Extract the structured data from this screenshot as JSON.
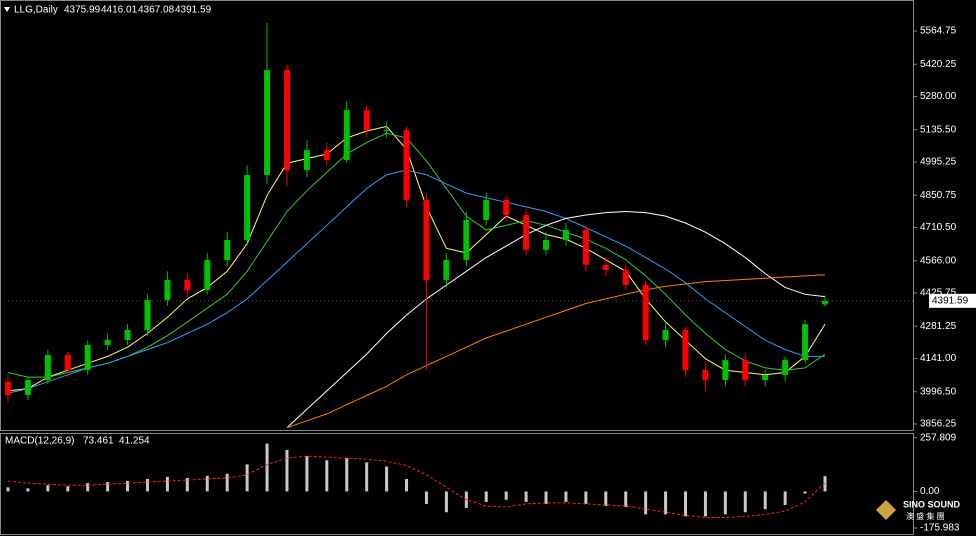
{
  "chart_data": [
    {
      "type": "candlestick",
      "title": "LLG,Daily",
      "open": [
        4040,
        3982,
        4047,
        4156,
        4091,
        4200,
        4221,
        4265,
        4395,
        4482,
        4439,
        4569,
        4656,
        4939,
        5395,
        4960,
        5047,
        5004,
        5221,
        5134,
        5134,
        4830,
        4482,
        4569,
        4743,
        4830,
        4765,
        4613,
        4656,
        4700,
        4548,
        4526,
        4461,
        4221,
        4265,
        4091,
        4047,
        4134,
        4047,
        4069,
        4134,
        4375.99
      ],
      "high": [
        4070,
        4060,
        4180,
        4170,
        4220,
        4250,
        4290,
        4420,
        4520,
        4510,
        4600,
        4690,
        4980,
        5600,
        5420,
        5090,
        5080,
        5260,
        5240,
        5170,
        5150,
        4860,
        4600,
        4780,
        4860,
        4850,
        4790,
        4690,
        4730,
        4720,
        4580,
        4550,
        4480,
        4300,
        4280,
        4120,
        4160,
        4160,
        4090,
        4150,
        4310,
        4416.01
      ],
      "low": [
        3950,
        3960,
        4030,
        4060,
        4070,
        4180,
        4200,
        4240,
        4370,
        4410,
        4420,
        4540,
        4630,
        4900,
        4890,
        4930,
        4980,
        4990,
        5100,
        5100,
        4800,
        4091,
        4450,
        4540,
        4720,
        4740,
        4590,
        4590,
        4630,
        4520,
        4500,
        4440,
        4200,
        4190,
        4060,
        4000,
        4020,
        4020,
        4020,
        4040,
        4120,
        4367.08
      ],
      "close": [
        3982,
        4047,
        4156,
        4091,
        4200,
        4221,
        4265,
        4395,
        4482,
        4439,
        4569,
        4656,
        4939,
        5395,
        4960,
        5047,
        5004,
        5221,
        5134,
        5134,
        4830,
        4482,
        4569,
        4743,
        4830,
        4765,
        4613,
        4656,
        4700,
        4548,
        4526,
        4461,
        4221,
        4265,
        4091,
        4047,
        4134,
        4047,
        4069,
        4134,
        4290,
        4391.59
      ],
      "up_color": "#00c000",
      "down_color": "#ff0000",
      "lines": [
        {
          "color": "#ffff66",
          "values": [
            4000,
            4010,
            4060,
            4090,
            4120,
            4150,
            4190,
            4250,
            4320,
            4400,
            4450,
            4520,
            4640,
            4850,
            4990,
            5010,
            5030,
            5100,
            5130,
            5150,
            5050,
            4800,
            4620,
            4600,
            4680,
            4760,
            4720,
            4680,
            4660,
            4620,
            4570,
            4520,
            4400,
            4300,
            4220,
            4140,
            4090,
            4080,
            4070,
            4080,
            4150,
            4290
          ]
        },
        {
          "color": "#33cc33",
          "values": [
            4080,
            4060,
            4060,
            4080,
            4100,
            4120,
            4150,
            4190,
            4240,
            4300,
            4360,
            4420,
            4520,
            4650,
            4780,
            4870,
            4950,
            5030,
            5080,
            5120,
            5100,
            5000,
            4880,
            4760,
            4700,
            4720,
            4740,
            4720,
            4690,
            4660,
            4620,
            4570,
            4500,
            4420,
            4330,
            4250,
            4180,
            4130,
            4100,
            4090,
            4100,
            4160
          ]
        },
        {
          "color": "#3399ff",
          "values": [
            3990,
            4010,
            4040,
            4070,
            4100,
            4120,
            4150,
            4180,
            4210,
            4250,
            4290,
            4340,
            4400,
            4480,
            4560,
            4640,
            4720,
            4800,
            4880,
            4940,
            4960,
            4940,
            4900,
            4860,
            4840,
            4820,
            4800,
            4780,
            4750,
            4710,
            4670,
            4630,
            4580,
            4530,
            4470,
            4400,
            4340,
            4280,
            4220,
            4180,
            4150,
            4150
          ]
        },
        {
          "color": "#ffffff",
          "values": [
            null,
            null,
            null,
            null,
            null,
            null,
            null,
            null,
            null,
            null,
            null,
            null,
            null,
            null,
            3840,
            3920,
            4000,
            4080,
            4160,
            4250,
            4330,
            4400,
            4460,
            4520,
            4580,
            4630,
            4680,
            4720,
            4750,
            4765,
            4775,
            4780,
            4775,
            4760,
            4730,
            4690,
            4640,
            4580,
            4510,
            4450,
            4420,
            4410
          ]
        },
        {
          "color": "#ff8000",
          "values": [
            null,
            null,
            null,
            null,
            null,
            null,
            null,
            null,
            null,
            null,
            null,
            null,
            null,
            null,
            3840,
            3870,
            3900,
            3940,
            3980,
            4020,
            4070,
            4110,
            4150,
            4190,
            4230,
            4260,
            4290,
            4320,
            4350,
            4380,
            4400,
            4420,
            4440,
            4455,
            4465,
            4475,
            4480,
            4485,
            4490,
            4495,
            4500,
            4505
          ]
        }
      ],
      "ylim": [
        3830,
        5691
      ],
      "yticks": [
        5564.75,
        5420.25,
        {
          "value": 5280,
          "label": "5280.00"
        },
        {
          "value": 5135.5,
          "label": "5135.50"
        },
        4995.25,
        4850.75,
        {
          "value": 4710.5,
          "label": "4710.50"
        },
        {
          "value": 4566,
          "label": "4566.00"
        },
        4425.75,
        4281.25,
        {
          "value": 4141,
          "label": "4141.00"
        },
        {
          "value": 3996.5,
          "label": "3996.50"
        },
        3856.25
      ]
    },
    {
      "type": "macd",
      "title": "MACD(12,26,9)",
      "histogram": [
        20,
        15,
        30,
        25,
        40,
        45,
        50,
        60,
        70,
        65,
        75,
        85,
        130,
        230,
        200,
        170,
        150,
        160,
        140,
        120,
        60,
        -60,
        -100,
        -80,
        -50,
        -40,
        -50,
        -60,
        -50,
        -60,
        -70,
        -75,
        -110,
        -110,
        -120,
        -120,
        -110,
        -100,
        -85,
        -65,
        -10,
        73.461
      ],
      "signal": [
        50,
        40,
        35,
        30,
        30,
        35,
        40,
        45,
        50,
        55,
        60,
        65,
        80,
        130,
        160,
        170,
        165,
        160,
        155,
        145,
        125,
        80,
        20,
        -40,
        -70,
        -75,
        -60,
        -55,
        -55,
        -60,
        -65,
        -70,
        -85,
        -100,
        -115,
        -125,
        -125,
        -120,
        -110,
        -95,
        -50,
        41.254
      ],
      "histogram_color": "#c8c8c8",
      "signal_color": "#ff2020",
      "ylim": [
        -195,
        281
      ],
      "yticks": [
        257.809,
        {
          "value": 0,
          "label": "0.00"
        },
        -175.983
      ]
    }
  ],
  "logo": {
    "name": "SINO SOUND",
    "chinese": "澳 盛 集 團"
  }
}
